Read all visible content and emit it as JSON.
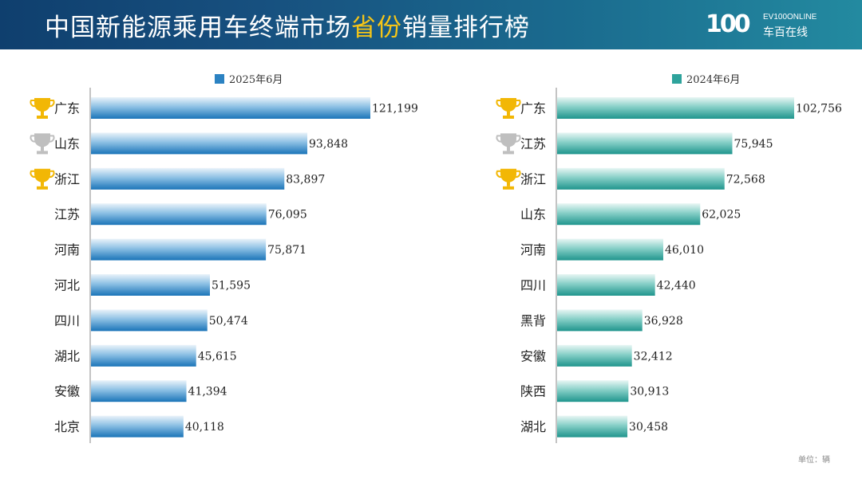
{
  "header": {
    "title_part1": "中国新能源乘用车终端市场",
    "title_highlight": "省份",
    "title_part2": "销量排行榜",
    "logo_number": "100",
    "logo_en": "EV100ONLINE",
    "logo_cn": "车百在线"
  },
  "unit_label": "单位：辆",
  "colors": {
    "bar2025": "#2b82c2",
    "bar2024": "#2ea39c",
    "gold": "#f2b705",
    "silver": "#bfbfbf"
  },
  "chart_data": [
    {
      "type": "bar",
      "orientation": "horizontal",
      "legend": "2025年6月",
      "categories": [
        "广东",
        "山东",
        "浙江",
        "江苏",
        "河南",
        "河北",
        "四川",
        "湖北",
        "安徽",
        "北京"
      ],
      "values": [
        121199,
        93848,
        83897,
        76095,
        75871,
        51595,
        50474,
        45615,
        41394,
        40118
      ],
      "value_labels": [
        "121,199",
        "93,848",
        "83,897",
        "76,095",
        "75,871",
        "51,595",
        "50,474",
        "45,615",
        "41,394",
        "40,118"
      ],
      "trophies": [
        "gold",
        "silver",
        "gold",
        "",
        "",
        "",
        "",
        "",
        "",
        ""
      ],
      "xlim": [
        0,
        220000
      ]
    },
    {
      "type": "bar",
      "orientation": "horizontal",
      "legend": "2024年6月",
      "categories": [
        "广东",
        "江苏",
        "浙江",
        "山东",
        "河南",
        "四川",
        "黑背",
        "安徽",
        "陕西",
        "湖北"
      ],
      "values": [
        102756,
        75945,
        72568,
        62025,
        46010,
        42440,
        36928,
        32412,
        30913,
        30458
      ],
      "value_labels": [
        "102,756",
        "75,945",
        "72,568",
        "62,025",
        "46,010",
        "42,440",
        "36,928",
        "32,412",
        "30,913",
        "30,458"
      ],
      "trophies": [
        "gold",
        "silver",
        "gold",
        "",
        "",
        "",
        "",
        "",
        "",
        ""
      ],
      "xlim": [
        0,
        220000
      ]
    }
  ]
}
